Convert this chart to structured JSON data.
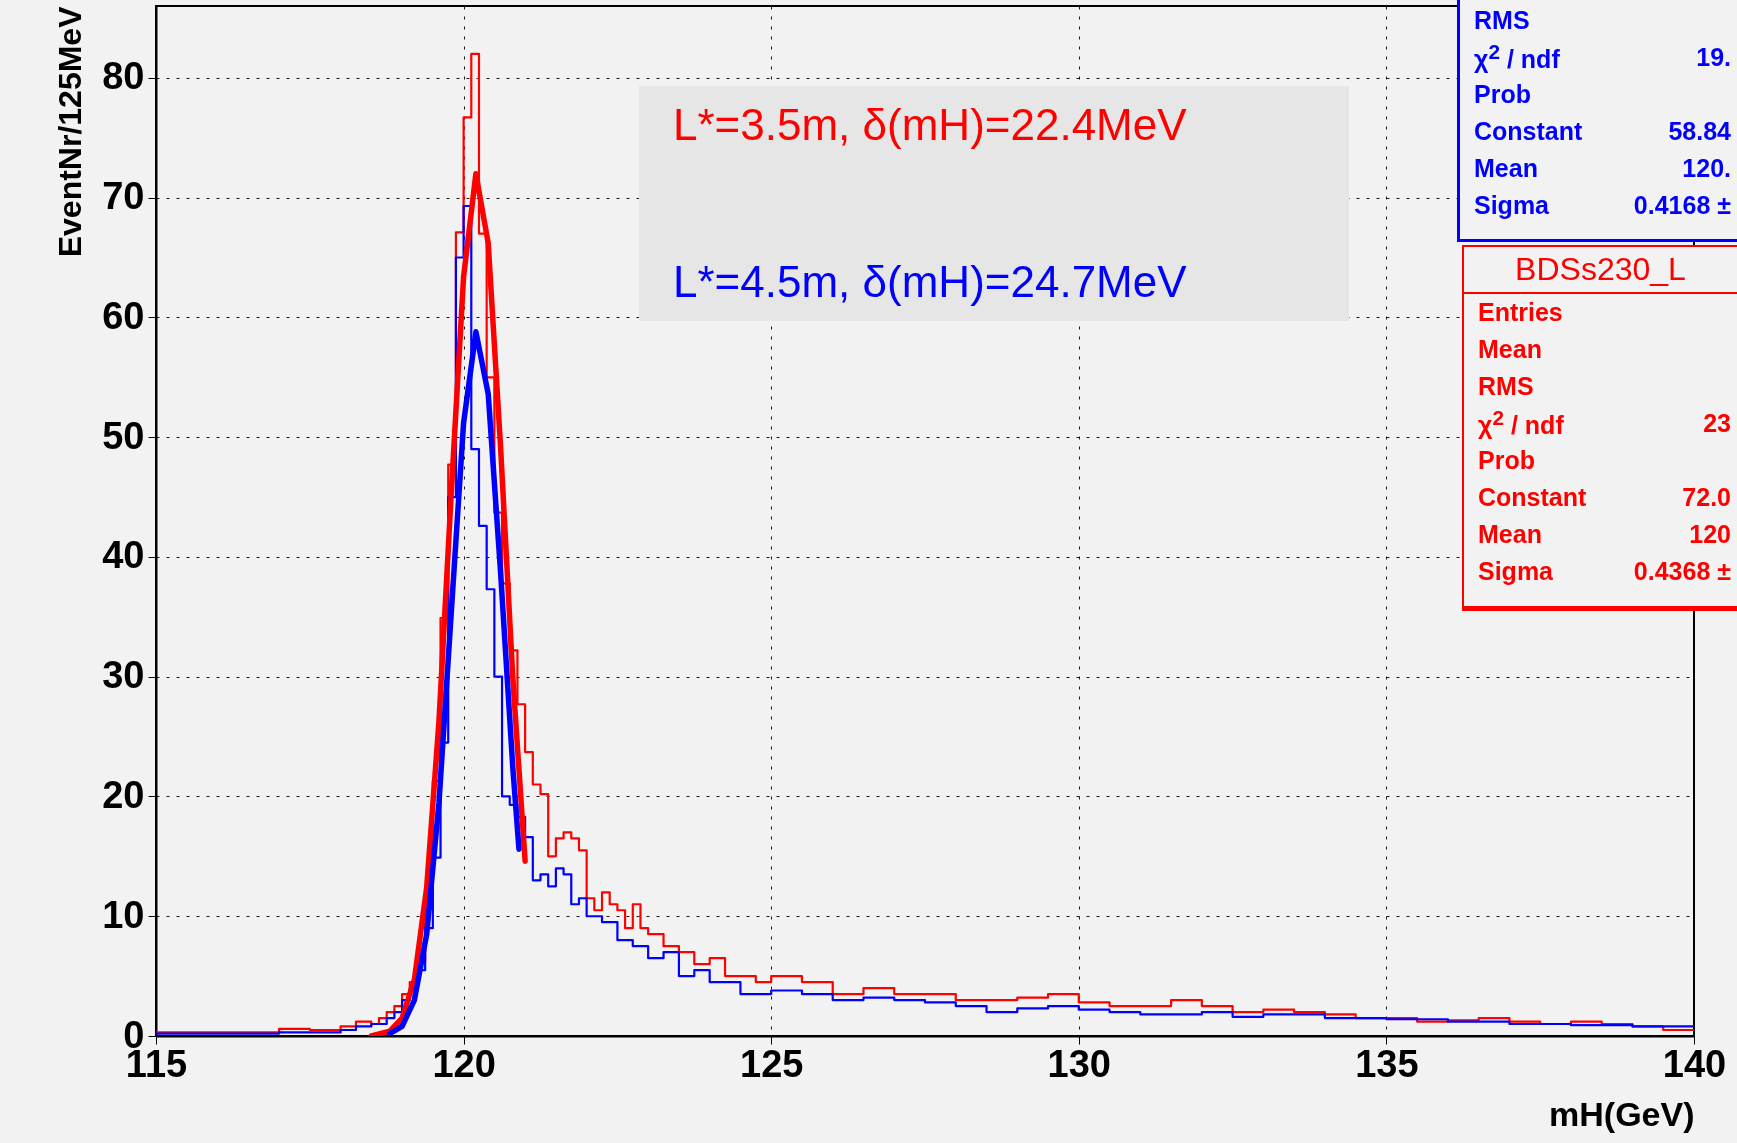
{
  "chart_data": {
    "type": "step",
    "xlabel": "mH(GeV)",
    "ylabel": "EventNr/125MeV",
    "xlim": [
      115,
      140
    ],
    "xticks": [
      115,
      120,
      125,
      130,
      135,
      140
    ],
    "ylim": [
      0,
      86
    ],
    "yticks": [
      0,
      10,
      20,
      30,
      40,
      50,
      60,
      70,
      80
    ],
    "grid": true,
    "legend": "top",
    "series": [
      {
        "name": "L*=3.5m,  δ(mH)=22.4MeV",
        "color": "#ff0000",
        "x": [
          115,
          116,
          117,
          117.5,
          118,
          118.25,
          118.5,
          118.625,
          118.75,
          118.875,
          119,
          119.125,
          119.25,
          119.375,
          119.5,
          119.625,
          119.75,
          119.875,
          120,
          120.125,
          120.25,
          120.375,
          120.5,
          120.625,
          120.75,
          120.875,
          121,
          121.125,
          121.25,
          121.375,
          121.5,
          121.625,
          121.75,
          121.875,
          122,
          122.125,
          122.25,
          122.375,
          122.5,
          122.625,
          122.75,
          122.875,
          123,
          123.25,
          123.5,
          123.75,
          124,
          124.25,
          124.5,
          124.75,
          125,
          125.5,
          126,
          126.5,
          127,
          127.5,
          128,
          128.5,
          129,
          129.5,
          130,
          130.5,
          131,
          131.5,
          132,
          132.5,
          133,
          133.5,
          134,
          134.5,
          135,
          135.5,
          136,
          136.5,
          137,
          137.5,
          138,
          138.5,
          139,
          139.5,
          140
        ],
        "values": [
          0.3,
          0.3,
          0.6,
          0.5,
          0.8,
          1.2,
          1,
          1.5,
          2,
          2.5,
          3.5,
          4.5,
          6.2,
          10.6,
          21.3,
          34.9,
          47.7,
          67.1,
          76.7,
          82,
          67,
          55,
          43.7,
          37.8,
          32.2,
          27.7,
          23.7,
          21,
          20.2,
          15,
          16.5,
          17,
          16.5,
          15.5,
          11.5,
          10.5,
          12,
          11,
          10.5,
          9,
          11,
          9,
          8.5,
          7.5,
          7,
          6,
          6.5,
          5,
          5,
          4.5,
          5,
          4.5,
          3.5,
          4,
          3.5,
          3.5,
          3,
          3,
          3.2,
          3.5,
          2.8,
          2.5,
          2.5,
          3,
          2.5,
          2,
          2.2,
          2,
          1.8,
          1.5,
          1.5,
          1.2,
          1.3,
          1.5,
          1.2,
          1,
          1.2,
          1,
          0.8,
          0.5,
          0.5
        ]
      },
      {
        "name": "L*=4.5m,  δ(mH)=24.7MeV",
        "color": "#0000ff",
        "x": [
          115,
          116,
          117,
          118,
          118.25,
          118.5,
          118.625,
          118.75,
          118.875,
          119,
          119.125,
          119.25,
          119.375,
          119.5,
          119.625,
          119.75,
          119.875,
          120,
          120.125,
          120.25,
          120.375,
          120.5,
          120.625,
          120.75,
          120.875,
          121,
          121.125,
          121.25,
          121.375,
          121.5,
          121.625,
          121.75,
          121.875,
          122,
          122.25,
          122.5,
          122.75,
          123,
          123.25,
          123.5,
          123.75,
          124,
          124.5,
          125,
          125.5,
          126,
          126.5,
          127,
          127.5,
          128,
          128.5,
          129,
          129.5,
          130,
          130.5,
          131,
          132,
          132.5,
          133,
          134,
          135,
          136,
          137,
          138,
          139,
          140
        ],
        "values": [
          0.2,
          0.2,
          0.3,
          0.5,
          0.8,
          1,
          1,
          1.5,
          2,
          3,
          4,
          5.5,
          9,
          14.9,
          24.5,
          45,
          65,
          69.3,
          49,
          42.6,
          37.3,
          30,
          20,
          19.3,
          18.3,
          16.6,
          13,
          13.5,
          12.5,
          14,
          13.5,
          11,
          11.5,
          10,
          9.5,
          8,
          7.5,
          6.5,
          7,
          5,
          5.5,
          4.5,
          3.5,
          3.8,
          3.5,
          3,
          3.2,
          3,
          2.8,
          2.5,
          2,
          2.3,
          2.5,
          2.2,
          2,
          1.8,
          2,
          1.6,
          1.8,
          1.5,
          1.4,
          1.2,
          1,
          0.9,
          0.8,
          0.8
        ]
      },
      {
        "type": "line",
        "color": "#ff0000",
        "x": [
          118.5,
          118.8,
          119,
          119.2,
          119.4,
          119.6,
          119.8,
          120,
          120.2,
          120.4,
          120.6,
          120.8,
          121
        ],
        "values": [
          0,
          0.4,
          1.5,
          4.7,
          12.4,
          26.3,
          45.4,
          63.4,
          72,
          66.2,
          49.3,
          29.9,
          14.6
        ]
      },
      {
        "type": "line",
        "color": "#0000ff",
        "x": [
          118.8,
          119,
          119.2,
          119.4,
          119.6,
          119.8,
          120,
          120.2,
          120.4,
          120.6,
          120.8,
          120.9
        ],
        "values": [
          0.2,
          0.8,
          3,
          8.5,
          19.5,
          35.4,
          51.2,
          58.8,
          53.6,
          38.8,
          22.4,
          15.6
        ]
      }
    ],
    "annotations": [
      "RMS",
      "χ$^{2}$ / ndf",
      "19.",
      "Prob",
      "Constant",
      "58.84",
      "Mean",
      "120.",
      "Sigma",
      "0.4168 ±",
      "BDSs230_L",
      "Entries",
      "Mean",
      "RMS",
      "χ$^{2}$ / ndf",
      "23",
      "Prob",
      "Constant",
      "72.0",
      "Mean",
      "120",
      "Sigma",
      "0.4368 ±"
    ]
  }
}
